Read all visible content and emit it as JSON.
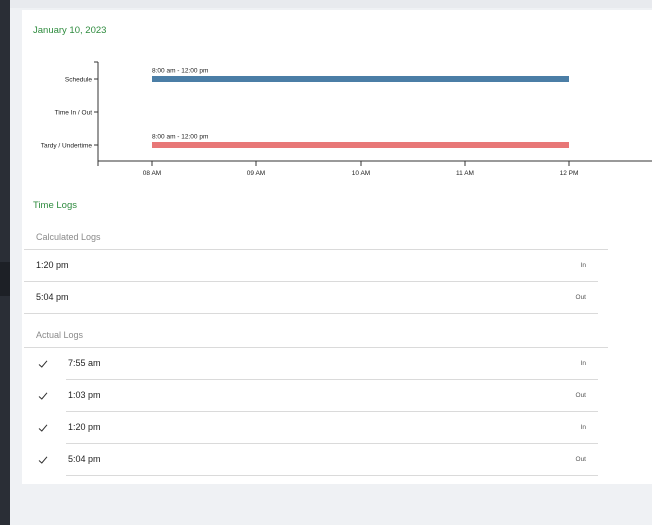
{
  "header": {
    "date": "January 10, 2023"
  },
  "chart_data": {
    "type": "timeline",
    "rows": [
      "Schedule",
      "Time In / Out",
      "Tardy / Undertime"
    ],
    "x_ticks": [
      "08 AM",
      "09 AM",
      "10 AM",
      "11 AM",
      "12 PM"
    ],
    "bars": [
      {
        "row": "Schedule",
        "start": "8:00 am",
        "end": "12:00 pm",
        "label": "8:00 am - 12:00 pm",
        "color": "#4b7ea6"
      },
      {
        "row": "Tardy / Undertime",
        "start": "8:00 am",
        "end": "12:00 pm",
        "label": "8:00 am - 12:00 pm",
        "color": "#e87777"
      }
    ]
  },
  "time_logs": {
    "title": "Time Logs",
    "calculated": {
      "title": "Calculated Logs",
      "rows": [
        {
          "time": "1:20 pm",
          "type": "In"
        },
        {
          "time": "5:04 pm",
          "type": "Out"
        }
      ]
    },
    "actual": {
      "title": "Actual Logs",
      "rows": [
        {
          "time": "7:55 am",
          "type": "In",
          "check_icon": "checkmark-icon"
        },
        {
          "time": "1:03 pm",
          "type": "Out",
          "check_icon": "checkmark-icon"
        },
        {
          "time": "1:20 pm",
          "type": "In",
          "check_icon": "checkmark-icon"
        },
        {
          "time": "5:04 pm",
          "type": "Out",
          "check_icon": "checkmark-icon"
        }
      ]
    }
  }
}
